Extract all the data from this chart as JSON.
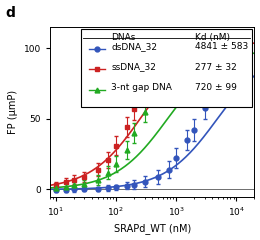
{
  "title": "d",
  "xlabel": "SRAPd_WT (nM)",
  "ylabel": "FP (μmP)",
  "ylim": [
    -5,
    115
  ],
  "xlim": [
    8,
    20000
  ],
  "legend_title_col1": "DNAs",
  "legend_title_col2": "Kd (nM)",
  "legend_entries": [
    {
      "label": "dsDNA_32",
      "kd": "4841 ± 583",
      "color": "#3355bb",
      "marker": "o"
    },
    {
      "label": "ssDNA_32",
      "kd": "277 ± 32",
      "color": "#cc2222",
      "marker": "s"
    },
    {
      "label": "3-nt gap DNA",
      "kd": "720 ± 99",
      "color": "#22aa22",
      "marker": "^"
    }
  ],
  "yticks": [
    0,
    50,
    100
  ],
  "series": {
    "dsDNA_32": {
      "color": "#3355bb",
      "marker": "o",
      "Kd": 4841,
      "Fmax": 100,
      "x": [
        10,
        15,
        20,
        30,
        50,
        75,
        100,
        150,
        200,
        300,
        500,
        750,
        1000,
        1500,
        2000,
        3000,
        5000,
        7500,
        10000
      ],
      "y": [
        -0.5,
        -0.5,
        0,
        0.3,
        0.5,
        1.0,
        1.5,
        2.5,
        3.5,
        5.5,
        9,
        14,
        22,
        35,
        42,
        58,
        73,
        85,
        90
      ],
      "yerr": [
        1.5,
        1.5,
        1.5,
        1.5,
        1.5,
        2,
        2,
        2.5,
        3,
        4,
        5,
        6,
        7,
        7,
        8,
        8,
        8,
        8,
        8
      ]
    },
    "ssDNA_32": {
      "color": "#cc2222",
      "marker": "s",
      "Kd": 277,
      "Fmax": 105,
      "x": [
        10,
        15,
        20,
        30,
        50,
        75,
        100,
        150,
        200,
        300,
        500,
        750,
        1000,
        1500,
        2000,
        3000,
        5000,
        7500,
        10000
      ],
      "y": [
        3,
        5,
        7,
        9,
        14,
        21,
        31,
        44,
        57,
        70,
        83,
        91,
        96,
        100,
        102,
        103,
        104,
        105,
        105
      ],
      "yerr": [
        2,
        3,
        3,
        3.5,
        4.5,
        5.5,
        6.5,
        7,
        8,
        8,
        8,
        8,
        7,
        7,
        6,
        6,
        5,
        5,
        5
      ]
    },
    "3nt_gap": {
      "color": "#22aa22",
      "marker": "^",
      "Kd": 720,
      "Fmax": 100,
      "x": [
        10,
        15,
        20,
        30,
        50,
        75,
        100,
        150,
        200,
        300,
        500,
        750,
        1000,
        1500,
        2000,
        3000,
        5000,
        7500,
        10000
      ],
      "y": [
        1,
        2,
        3,
        4,
        7,
        12,
        18,
        28,
        40,
        55,
        71,
        81,
        87,
        92,
        94,
        96,
        97,
        98,
        99
      ],
      "yerr": [
        2,
        2.5,
        2.5,
        3,
        3.5,
        4.5,
        5.5,
        6.5,
        7,
        7.5,
        7,
        7,
        6.5,
        6,
        6,
        5.5,
        5,
        5,
        5
      ]
    }
  }
}
